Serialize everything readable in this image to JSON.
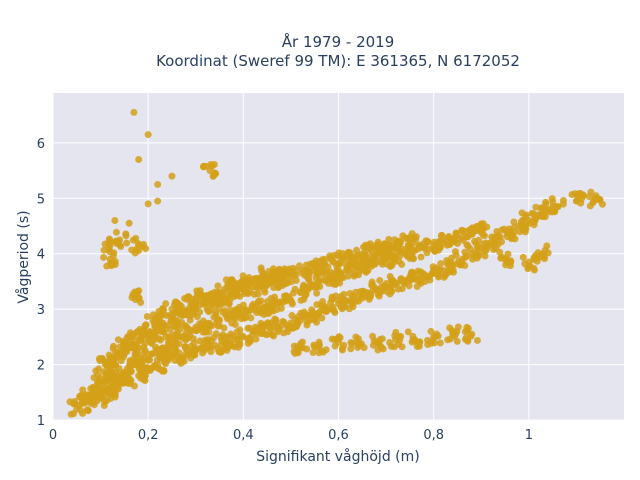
{
  "chart_data": {
    "type": "scatter",
    "title": "År 1979 - 2019",
    "subtitle": "Koordinat (Sweref 99 TM): E 361365, N 6172052",
    "xlabel": "Signifikant våghöjd (m)",
    "ylabel": "Vågperiod (s)",
    "xlim": [
      0,
      1.2
    ],
    "ylim": [
      1,
      6.9
    ],
    "xticks": [
      {
        "value": 0,
        "label": "0"
      },
      {
        "value": 0.2,
        "label": "0,2"
      },
      {
        "value": 0.4,
        "label": "0,4"
      },
      {
        "value": 0.6,
        "label": "0,6"
      },
      {
        "value": 0.8,
        "label": "0,8"
      },
      {
        "value": 1,
        "label": "1"
      }
    ],
    "yticks": [
      {
        "value": 1,
        "label": "1"
      },
      {
        "value": 2,
        "label": "2"
      },
      {
        "value": 3,
        "label": "3"
      },
      {
        "value": 4,
        "label": "4"
      },
      {
        "value": 5,
        "label": "5"
      },
      {
        "value": 6,
        "label": "6"
      }
    ],
    "grid": true,
    "colors": {
      "marker": "#d4a017",
      "plot_bg": "#e5e5f0",
      "grid": "#ffffff",
      "text": "#2a3f5f"
    },
    "series": [
      {
        "points": [
          [
            0.05,
            1.2
          ],
          [
            0.06,
            1.3
          ],
          [
            0.07,
            1.45
          ],
          [
            0.08,
            1.3
          ],
          [
            0.09,
            1.55
          ],
          [
            0.1,
            1.4
          ],
          [
            0.1,
            1.75
          ],
          [
            0.11,
            1.6
          ],
          [
            0.11,
            2.0
          ],
          [
            0.12,
            1.5
          ],
          [
            0.12,
            1.9
          ],
          [
            0.13,
            1.7
          ],
          [
            0.13,
            2.1
          ],
          [
            0.14,
            1.65
          ],
          [
            0.14,
            2.2
          ],
          [
            0.15,
            1.8
          ],
          [
            0.15,
            2.4
          ],
          [
            0.16,
            1.75
          ],
          [
            0.16,
            2.3
          ],
          [
            0.17,
            2.0
          ],
          [
            0.17,
            2.5
          ],
          [
            0.18,
            1.8
          ],
          [
            0.18,
            2.3
          ],
          [
            0.19,
            2.1
          ],
          [
            0.19,
            2.6
          ],
          [
            0.2,
            1.9
          ],
          [
            0.2,
            2.5
          ],
          [
            0.21,
            2.2
          ],
          [
            0.21,
            2.8
          ],
          [
            0.22,
            2.0
          ],
          [
            0.22,
            2.6
          ],
          [
            0.23,
            2.3
          ],
          [
            0.23,
            2.9
          ],
          [
            0.24,
            2.1
          ],
          [
            0.24,
            2.7
          ],
          [
            0.25,
            2.4
          ],
          [
            0.25,
            3.0
          ],
          [
            0.26,
            2.15
          ],
          [
            0.26,
            2.8
          ],
          [
            0.27,
            2.5
          ],
          [
            0.27,
            3.05
          ],
          [
            0.28,
            2.2
          ],
          [
            0.28,
            2.9
          ],
          [
            0.29,
            2.6
          ],
          [
            0.29,
            3.1
          ],
          [
            0.3,
            2.25
          ],
          [
            0.3,
            3.0
          ],
          [
            0.31,
            2.65
          ],
          [
            0.31,
            3.2
          ],
          [
            0.32,
            2.3
          ],
          [
            0.32,
            3.1
          ],
          [
            0.33,
            2.7
          ],
          [
            0.33,
            3.25
          ],
          [
            0.34,
            2.35
          ],
          [
            0.34,
            3.15
          ],
          [
            0.35,
            2.8
          ],
          [
            0.35,
            3.3
          ],
          [
            0.36,
            2.4
          ],
          [
            0.36,
            3.2
          ],
          [
            0.37,
            2.85
          ],
          [
            0.37,
            3.4
          ],
          [
            0.38,
            2.45
          ],
          [
            0.38,
            3.3
          ],
          [
            0.39,
            2.9
          ],
          [
            0.39,
            3.45
          ],
          [
            0.4,
            2.5
          ],
          [
            0.4,
            3.35
          ],
          [
            0.41,
            2.95
          ],
          [
            0.41,
            3.5
          ],
          [
            0.42,
            2.55
          ],
          [
            0.42,
            3.4
          ],
          [
            0.43,
            3.0
          ],
          [
            0.43,
            3.55
          ],
          [
            0.44,
            2.6
          ],
          [
            0.44,
            3.45
          ],
          [
            0.45,
            3.05
          ],
          [
            0.45,
            3.6
          ],
          [
            0.46,
            2.65
          ],
          [
            0.46,
            3.5
          ],
          [
            0.47,
            3.1
          ],
          [
            0.47,
            3.6
          ],
          [
            0.48,
            2.7
          ],
          [
            0.48,
            3.55
          ],
          [
            0.49,
            3.15
          ],
          [
            0.49,
            3.65
          ],
          [
            0.5,
            2.75
          ],
          [
            0.5,
            3.6
          ],
          [
            0.52,
            2.8
          ],
          [
            0.52,
            3.3
          ],
          [
            0.53,
            3.7
          ],
          [
            0.54,
            2.9
          ],
          [
            0.54,
            3.4
          ],
          [
            0.55,
            3.75
          ],
          [
            0.56,
            2.95
          ],
          [
            0.56,
            3.5
          ],
          [
            0.57,
            3.8
          ],
          [
            0.58,
            3.0
          ],
          [
            0.58,
            3.55
          ],
          [
            0.59,
            3.85
          ],
          [
            0.6,
            3.1
          ],
          [
            0.6,
            3.6
          ],
          [
            0.61,
            3.9
          ],
          [
            0.62,
            3.15
          ],
          [
            0.62,
            3.7
          ],
          [
            0.63,
            3.95
          ],
          [
            0.64,
            3.2
          ],
          [
            0.64,
            3.75
          ],
          [
            0.65,
            4.0
          ],
          [
            0.66,
            3.3
          ],
          [
            0.66,
            3.8
          ],
          [
            0.67,
            4.05
          ],
          [
            0.68,
            3.35
          ],
          [
            0.68,
            3.85
          ],
          [
            0.69,
            4.1
          ],
          [
            0.7,
            3.4
          ],
          [
            0.7,
            3.9
          ],
          [
            0.71,
            4.15
          ],
          [
            0.72,
            3.45
          ],
          [
            0.72,
            3.95
          ],
          [
            0.73,
            4.2
          ],
          [
            0.74,
            3.5
          ],
          [
            0.74,
            4.0
          ],
          [
            0.75,
            4.25
          ],
          [
            0.76,
            3.55
          ],
          [
            0.76,
            4.05
          ],
          [
            0.78,
            3.6
          ],
          [
            0.78,
            4.1
          ],
          [
            0.8,
            3.65
          ],
          [
            0.8,
            4.15
          ],
          [
            0.82,
            3.7
          ],
          [
            0.82,
            4.2
          ],
          [
            0.84,
            3.8
          ],
          [
            0.84,
            4.25
          ],
          [
            0.86,
            3.9
          ],
          [
            0.86,
            4.3
          ],
          [
            0.88,
            4.0
          ],
          [
            0.88,
            4.35
          ],
          [
            0.9,
            4.1
          ],
          [
            0.9,
            4.4
          ],
          [
            0.92,
            4.2
          ],
          [
            0.94,
            4.3
          ],
          [
            0.96,
            4.4
          ],
          [
            0.98,
            4.5
          ],
          [
            1.0,
            4.6
          ],
          [
            1.02,
            4.7
          ],
          [
            1.04,
            4.8
          ],
          [
            1.06,
            4.85
          ],
          [
            1.1,
            4.95
          ],
          [
            1.14,
            5.0
          ],
          [
            0.52,
            2.3
          ],
          [
            0.56,
            2.35
          ],
          [
            0.6,
            2.4
          ],
          [
            0.64,
            2.4
          ],
          [
            0.68,
            2.4
          ],
          [
            0.72,
            2.45
          ],
          [
            0.76,
            2.45
          ],
          [
            0.8,
            2.5
          ],
          [
            0.84,
            2.55
          ],
          [
            0.88,
            2.55
          ],
          [
            0.17,
            6.55
          ],
          [
            0.2,
            6.15
          ],
          [
            0.18,
            5.7
          ],
          [
            0.33,
            5.5
          ],
          [
            0.25,
            5.4
          ],
          [
            0.22,
            5.25
          ],
          [
            0.22,
            4.95
          ],
          [
            0.2,
            4.9
          ],
          [
            0.13,
            4.6
          ],
          [
            0.16,
            4.55
          ],
          [
            0.12,
            4.15
          ],
          [
            0.14,
            4.25
          ],
          [
            0.18,
            4.15
          ],
          [
            0.12,
            3.9
          ],
          [
            0.18,
            3.2
          ],
          [
            0.95,
            3.9
          ],
          [
            1.0,
            3.85
          ],
          [
            1.03,
            4.0
          ]
        ]
      }
    ]
  }
}
